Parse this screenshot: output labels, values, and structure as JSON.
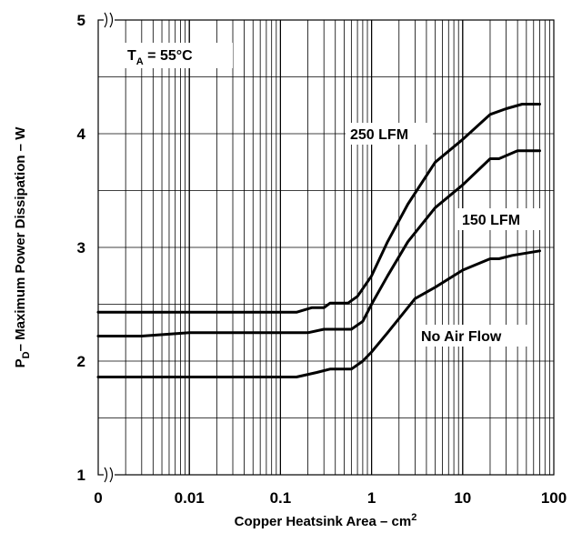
{
  "chart_data": {
    "type": "line",
    "xscale": "log",
    "xlim": [
      0.001,
      100
    ],
    "ylim": [
      1,
      5
    ],
    "x_ticks": [
      "0",
      "0.01",
      "0.1",
      "1",
      "10",
      "100"
    ],
    "y_ticks": [
      "1",
      "2",
      "3",
      "4",
      "5"
    ],
    "grid": true,
    "axis_breaks": true,
    "xlabel": {
      "main": "Copper Heatsink Area – cm",
      "sup": "2"
    },
    "ylabel": {
      "sym": "P",
      "sub": "D",
      "rest": "– Maximum Power Dissipation – W"
    },
    "condition": {
      "sym": "T",
      "sub": "A",
      "rest": " = 55°C"
    },
    "series": [
      {
        "name": "250 LFM",
        "points": [
          [
            0.001,
            2.43
          ],
          [
            0.15,
            2.43
          ],
          [
            0.22,
            2.47
          ],
          [
            0.3,
            2.47
          ],
          [
            0.35,
            2.51
          ],
          [
            0.55,
            2.51
          ],
          [
            0.7,
            2.57
          ],
          [
            1,
            2.75
          ],
          [
            1.5,
            3.05
          ],
          [
            2.5,
            3.38
          ],
          [
            5,
            3.75
          ],
          [
            10,
            3.95
          ],
          [
            20,
            4.17
          ],
          [
            30,
            4.22
          ],
          [
            45,
            4.26
          ],
          [
            70,
            4.26
          ]
        ]
      },
      {
        "name": "150 LFM",
        "points": [
          [
            0.001,
            2.22
          ],
          [
            0.003,
            2.22
          ],
          [
            0.01,
            2.25
          ],
          [
            0.2,
            2.25
          ],
          [
            0.3,
            2.28
          ],
          [
            0.6,
            2.28
          ],
          [
            0.8,
            2.35
          ],
          [
            1,
            2.5
          ],
          [
            1.5,
            2.75
          ],
          [
            2.5,
            3.05
          ],
          [
            5,
            3.35
          ],
          [
            10,
            3.55
          ],
          [
            20,
            3.78
          ],
          [
            25,
            3.78
          ],
          [
            40,
            3.85
          ],
          [
            70,
            3.85
          ]
        ]
      },
      {
        "name": "No Air Flow",
        "points": [
          [
            0.001,
            1.86
          ],
          [
            0.15,
            1.86
          ],
          [
            0.25,
            1.9
          ],
          [
            0.35,
            1.93
          ],
          [
            0.6,
            1.93
          ],
          [
            0.8,
            2.0
          ],
          [
            1,
            2.08
          ],
          [
            1.5,
            2.25
          ],
          [
            3,
            2.55
          ],
          [
            5,
            2.65
          ],
          [
            10,
            2.8
          ],
          [
            20,
            2.9
          ],
          [
            25,
            2.9
          ],
          [
            35,
            2.93
          ],
          [
            70,
            2.97
          ]
        ]
      }
    ],
    "labels": [
      "250 LFM",
      "150 LFM",
      "No Air Flow"
    ]
  }
}
